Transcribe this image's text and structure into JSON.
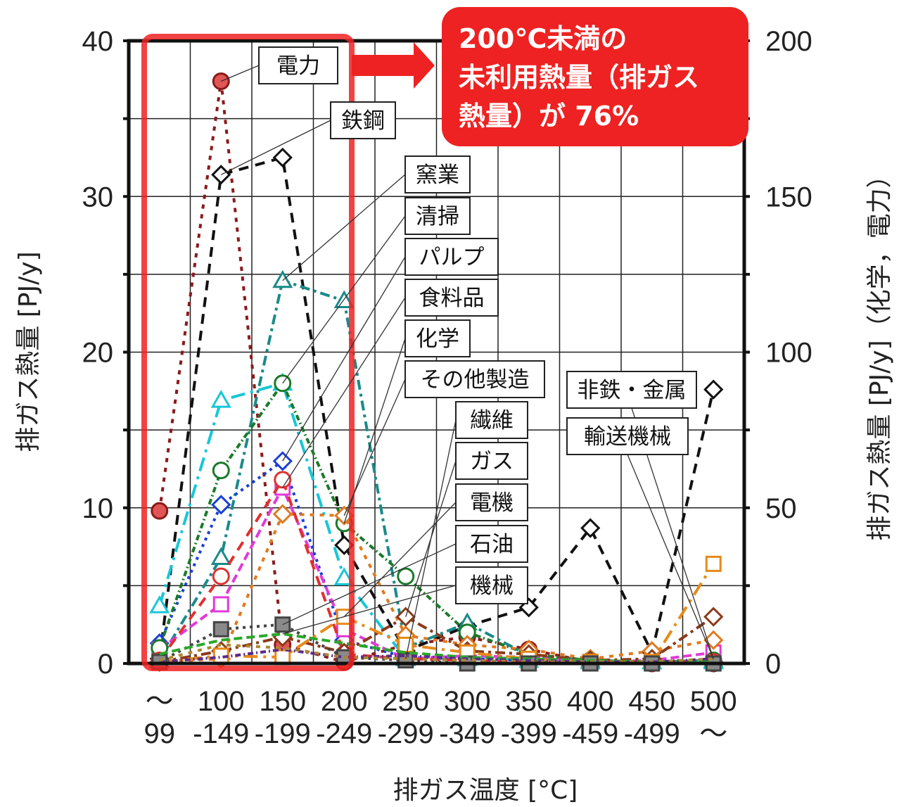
{
  "chart_data": {
    "type": "line",
    "title": "",
    "xlabel": "排ガス温度 [°C]",
    "ylabel_left": "排ガス熱量 [PJ/y]",
    "ylabel_right": "排ガス熱量 [PJ/y]（化学，電力）",
    "categories": [
      "〜 99",
      "100 -149",
      "150 -199",
      "200 -249",
      "250 -299",
      "300 -349",
      "350 -399",
      "400 -459",
      "450 -499",
      "500 〜"
    ],
    "category_lines": [
      [
        "〜",
        "99"
      ],
      [
        "100",
        "-149"
      ],
      [
        "150",
        "-199"
      ],
      [
        "200",
        "-249"
      ],
      [
        "250",
        "-299"
      ],
      [
        "300",
        "-349"
      ],
      [
        "350",
        "-399"
      ],
      [
        "400",
        "-459"
      ],
      [
        "450",
        "-499"
      ],
      [
        "500",
        "〜"
      ]
    ],
    "ylim_left": [
      0,
      40
    ],
    "yticks_left": [
      0,
      10,
      20,
      30,
      40
    ],
    "ylim_right": [
      0,
      200
    ],
    "yticks_right": [
      0,
      50,
      100,
      150,
      200
    ],
    "grid": true,
    "series": [
      {
        "name": "電力",
        "axis": "right",
        "color": "#e05555",
        "stroke": "#8b1a1a",
        "marker": "circle",
        "values": [
          49,
          187,
          6,
          0.5,
          6,
          8.5,
          4.5,
          0.5,
          0,
          0
        ]
      },
      {
        "name": "鉄鋼",
        "axis": "left",
        "color": "#ffffff",
        "stroke": "#111111",
        "marker": "diamond",
        "values": [
          0.3,
          31.4,
          32.5,
          7.6,
          0.8,
          2.4,
          3.6,
          8.7,
          0.7,
          17.6
        ]
      },
      {
        "name": "窯業",
        "axis": "left",
        "color": "#ffffff",
        "stroke": "#1a8a8a",
        "marker": "triangle",
        "values": [
          0.2,
          6.8,
          24.6,
          23.3,
          1.0,
          2.6,
          0.5,
          0.2,
          0.1,
          0.2
        ]
      },
      {
        "name": "清掃",
        "axis": "left",
        "color": "#ffffff",
        "stroke": "#17c7d8",
        "marker": "triangle",
        "values": [
          3.7,
          16.9,
          18.0,
          5.5,
          0.3,
          0.3,
          0.2,
          0.1,
          0.1,
          0.1
        ]
      },
      {
        "name": "パルプ",
        "axis": "left",
        "color": "#ffffff",
        "stroke": "#1a3fd8",
        "marker": "diamond",
        "values": [
          1.3,
          10.2,
          13.0,
          1.5,
          0.4,
          0.3,
          0.2,
          0.1,
          0.1,
          0.1
        ]
      },
      {
        "name": "食料品",
        "axis": "left",
        "color": "#ffffff",
        "stroke": "#e03ad8",
        "marker": "square",
        "values": [
          0.9,
          3.8,
          11.3,
          2.2,
          0.3,
          0.5,
          0.4,
          0.1,
          0.2,
          0.7
        ]
      },
      {
        "name": "化学",
        "axis": "right",
        "color": "#ffffff",
        "stroke": "#1a7a2a",
        "marker": "circle",
        "values": [
          5,
          62,
          90,
          45,
          28,
          10,
          3,
          1,
          0.5,
          1
        ]
      },
      {
        "name": "その他製造",
        "axis": "left",
        "color": "#ffffff",
        "stroke": "#e07a20",
        "marker": "diamond",
        "values": [
          0.1,
          0.3,
          9.6,
          9.5,
          1.8,
          1.2,
          0.9,
          0.3,
          0.8,
          1.5
        ]
      },
      {
        "name": "繊維",
        "axis": "left",
        "color": "#ffffff",
        "stroke": "#e03030",
        "marker": "circle",
        "values": [
          0.2,
          5.6,
          11.8,
          0.6,
          0.3,
          0.2,
          0.1,
          0.1,
          0.1,
          0.1
        ]
      },
      {
        "name": "ガス",
        "axis": "left",
        "color": "#ffffff",
        "stroke": "#8b3a1a",
        "marker": "diamond",
        "values": [
          0.1,
          0.8,
          1.7,
          0.7,
          3.0,
          0.8,
          0.6,
          0.2,
          0.3,
          3.0
        ]
      },
      {
        "name": "電機",
        "axis": "left",
        "color": "#ffffff",
        "stroke": "#e68a1a",
        "marker": "square",
        "values": [
          0.1,
          0.5,
          0.4,
          3.0,
          1.2,
          0.7,
          0.3,
          0.1,
          0.1,
          6.4
        ]
      },
      {
        "name": "石油",
        "axis": "left",
        "color": "#8a8a8a",
        "stroke": "#444444",
        "marker": "square",
        "values": [
          0.1,
          2.2,
          2.5,
          0.4,
          0.2,
          0.0,
          0.0,
          0.0,
          0.0,
          0.0
        ]
      },
      {
        "name": "機械",
        "axis": "left",
        "color": "#ffffff",
        "stroke": "#2aa82a",
        "marker": "none",
        "values": [
          0.6,
          1.5,
          1.9,
          1.3,
          0.7,
          0.4,
          0.3,
          0.2,
          0.1,
          0.2
        ]
      },
      {
        "name": "非鉄・金属",
        "axis": "left",
        "color": "#ffffff",
        "stroke": "#5a2a8a",
        "marker": "none",
        "values": [
          0.1,
          0.4,
          0.9,
          0.4,
          0.5,
          0.3,
          0.2,
          0.1,
          0.1,
          0.3
        ]
      },
      {
        "name": "輸送機械",
        "axis": "left",
        "color": "#ffffff",
        "stroke": "#aa8833",
        "marker": "none",
        "values": [
          0.2,
          1.2,
          1.0,
          0.4,
          0.3,
          0.2,
          0.1,
          0.1,
          0.1,
          0.3
        ]
      }
    ],
    "annotations": {
      "callout_lines": [
        "200℃未満の",
        "未利用熱量（排ガス",
        "熱量）が 76%"
      ],
      "highlight_color": "#ee2222"
    }
  }
}
